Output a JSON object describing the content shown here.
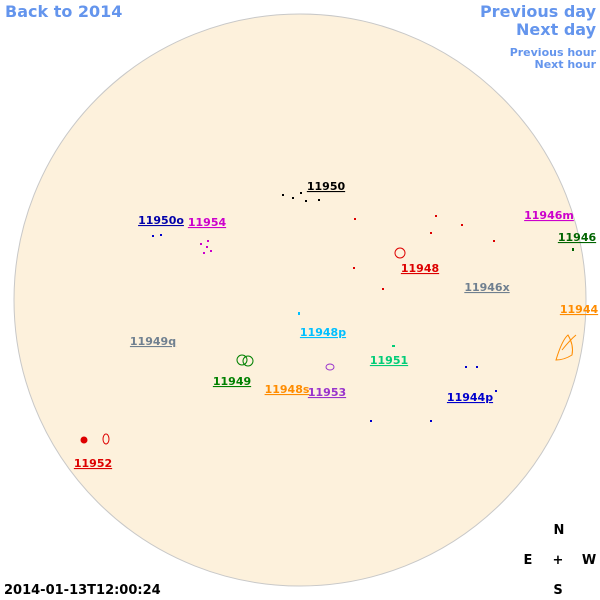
{
  "nav": {
    "back": "Back to 2014",
    "previous_day": "Previous day",
    "next_day": "Next day",
    "previous_hour": "Previous hour",
    "next_hour": "Next hour"
  },
  "regions": [
    {
      "label": "11950",
      "color": "#000000"
    },
    {
      "label": "11950o",
      "color": "#0000aa"
    },
    {
      "label": "11954",
      "color": "#cc00cc"
    },
    {
      "label": "11946m",
      "color": "#cc00cc"
    },
    {
      "label": "11946",
      "color": "#006400"
    },
    {
      "label": "11948",
      "color": "#dd0000"
    },
    {
      "label": "11946x",
      "color": "#708090"
    },
    {
      "label": "11944",
      "color": "#ff8c00"
    },
    {
      "label": "11948p",
      "color": "#00bfff"
    },
    {
      "label": "11949q",
      "color": "#708090"
    },
    {
      "label": "11951",
      "color": "#00cc77"
    },
    {
      "label": "11949",
      "color": "#008000"
    },
    {
      "label": "11948s",
      "color": "#ff8c00"
    },
    {
      "label": "11953",
      "color": "#9933cc"
    },
    {
      "label": "11944p",
      "color": "#0000cc"
    },
    {
      "label": "11952",
      "color": "#dd0000"
    }
  ],
  "compass": {
    "north": "N",
    "east": "E",
    "center": "+",
    "west": "W",
    "south": "S"
  },
  "timestamp": "2014-01-13T12:00:24"
}
